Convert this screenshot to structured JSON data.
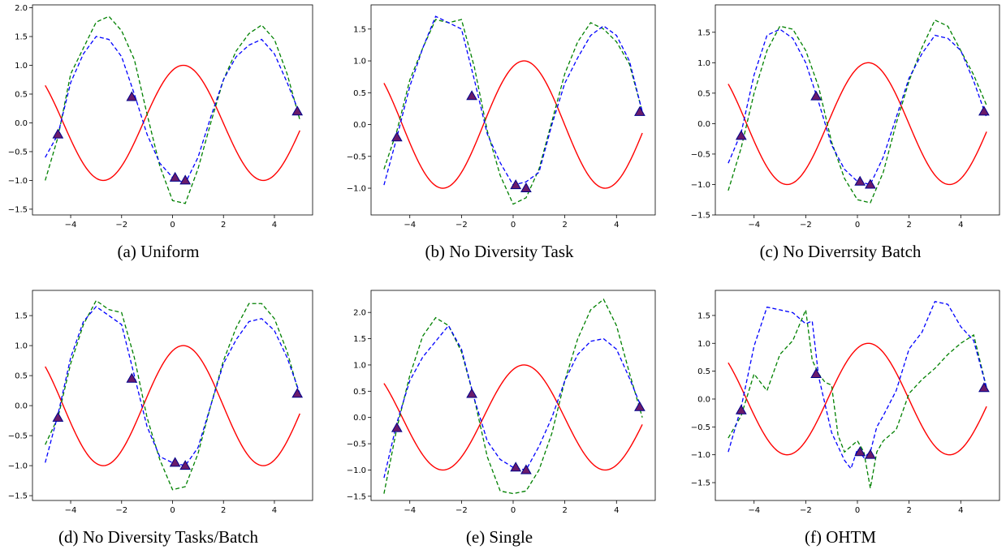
{
  "chart_data": [
    {
      "type": "line",
      "caption": "(a)  Uniform",
      "xlim": [
        -5.5,
        5.5
      ],
      "ylim": [
        -1.6,
        2.05
      ],
      "xticks": [
        -4,
        -2,
        0,
        2,
        4
      ],
      "xtick_labels": [
        "−4",
        "−2",
        "0",
        "2",
        "4"
      ],
      "yticks": [
        -1.5,
        -1.0,
        -0.5,
        0.0,
        0.5,
        1.0,
        1.5,
        2.0
      ],
      "ytick_labels": [
        "−1.5",
        "−1.0",
        "−0.5",
        "0.0",
        "0.5",
        "1.0",
        "1.5",
        "2.0"
      ],
      "sine": {
        "amplitude": 1.0,
        "phase": 1.15
      },
      "series": [
        {
          "color": "#008000",
          "dash": true,
          "x": [
            -5,
            -4.5,
            -4,
            -3.5,
            -3,
            -2.5,
            -2,
            -1.5,
            -1,
            -0.5,
            0,
            0.5,
            1,
            1.5,
            2,
            2.5,
            3,
            3.5,
            4,
            4.5,
            5
          ],
          "y": [
            -1.0,
            -0.25,
            0.85,
            1.3,
            1.75,
            1.85,
            1.6,
            1.1,
            0.15,
            -0.75,
            -1.35,
            -1.4,
            -0.8,
            0.0,
            0.75,
            1.25,
            1.55,
            1.7,
            1.45,
            0.85,
            0.05
          ]
        },
        {
          "color": "#0000ff",
          "dash": true,
          "x": [
            -5,
            -4.5,
            -4,
            -3.5,
            -3,
            -2.5,
            -2,
            -1.5,
            -1,
            -0.5,
            0,
            0.5,
            1,
            1.5,
            2,
            2.5,
            3,
            3.5,
            4,
            4.5,
            5
          ],
          "y": [
            -0.6,
            -0.2,
            0.7,
            1.2,
            1.5,
            1.45,
            1.15,
            0.5,
            -0.2,
            -0.7,
            -0.95,
            -1.05,
            -0.6,
            0.1,
            0.75,
            1.15,
            1.35,
            1.45,
            1.2,
            0.7,
            0.15
          ]
        }
      ],
      "points": {
        "x": [
          -4.5,
          -1.6,
          0.1,
          0.5,
          4.9
        ],
        "y": [
          -0.2,
          0.45,
          -0.95,
          -1.0,
          0.2
        ]
      }
    },
    {
      "type": "line",
      "caption": "(b)  No Diversity Task",
      "xlim": [
        -5.5,
        5.5
      ],
      "ylim": [
        -1.42,
        1.88
      ],
      "xticks": [
        -4,
        -2,
        0,
        2,
        4
      ],
      "xtick_labels": [
        "−4",
        "−2",
        "0",
        "2",
        "4"
      ],
      "yticks": [
        -1.0,
        -0.5,
        0.0,
        0.5,
        1.0,
        1.5
      ],
      "ytick_labels": [
        "−1.0",
        "−0.5",
        "0.0",
        "0.5",
        "1.0",
        "1.5"
      ],
      "sine": {
        "amplitude": 1.0,
        "phase": 1.15
      },
      "series": [
        {
          "color": "#008000",
          "dash": true,
          "x": [
            -5,
            -4.5,
            -4,
            -3.5,
            -3,
            -2.5,
            -2,
            -1.5,
            -1,
            -0.5,
            0,
            0.5,
            1,
            1.5,
            2,
            2.5,
            3,
            3.5,
            4,
            4.5,
            5
          ],
          "y": [
            -0.7,
            -0.1,
            0.7,
            1.2,
            1.65,
            1.6,
            1.65,
            0.9,
            -0.1,
            -0.8,
            -1.25,
            -1.15,
            -0.7,
            0.05,
            0.8,
            1.3,
            1.6,
            1.5,
            1.3,
            0.95,
            0.2
          ]
        },
        {
          "color": "#0000ff",
          "dash": true,
          "x": [
            -5,
            -4.5,
            -4,
            -3.5,
            -3,
            -2.5,
            -2,
            -1.5,
            -1,
            -0.5,
            0,
            0.5,
            1,
            1.5,
            2,
            2.5,
            3,
            3.5,
            4,
            4.5,
            5
          ],
          "y": [
            -0.95,
            -0.2,
            0.6,
            1.2,
            1.7,
            1.6,
            1.5,
            0.7,
            -0.15,
            -0.6,
            -0.95,
            -0.9,
            -0.75,
            0.0,
            0.65,
            1.05,
            1.4,
            1.55,
            1.4,
            1.0,
            0.2
          ]
        }
      ],
      "points": {
        "x": [
          -4.5,
          -1.6,
          0.1,
          0.5,
          4.9
        ],
        "y": [
          -0.2,
          0.45,
          -0.95,
          -1.0,
          0.2
        ]
      }
    },
    {
      "type": "line",
      "caption": "(c)  No Diverrsity Batch",
      "xlim": [
        -5.5,
        5.5
      ],
      "ylim": [
        -1.5,
        1.95
      ],
      "xticks": [
        -4,
        -2,
        0,
        2,
        4
      ],
      "xtick_labels": [
        "−4",
        "−2",
        "0",
        "2",
        "4"
      ],
      "yticks": [
        -1.5,
        -1.0,
        -0.5,
        0.0,
        0.5,
        1.0,
        1.5
      ],
      "ytick_labels": [
        "−1.5",
        "−1.0",
        "−0.5",
        "0.0",
        "0.5",
        "1.0",
        "1.5"
      ],
      "sine": {
        "amplitude": 1.0,
        "phase": 1.15
      },
      "series": [
        {
          "color": "#008000",
          "dash": true,
          "x": [
            -5,
            -4.5,
            -4,
            -3.5,
            -3,
            -2.5,
            -2,
            -1.5,
            -1,
            -0.5,
            0,
            0.5,
            1,
            1.5,
            2,
            2.5,
            3,
            3.5,
            4,
            4.5,
            5
          ],
          "y": [
            -1.1,
            -0.4,
            0.5,
            1.2,
            1.6,
            1.55,
            1.2,
            0.6,
            -0.3,
            -0.9,
            -1.25,
            -1.3,
            -0.8,
            0.0,
            0.7,
            1.25,
            1.7,
            1.6,
            1.2,
            0.8,
            0.3
          ]
        },
        {
          "color": "#0000ff",
          "dash": true,
          "x": [
            -5,
            -4.5,
            -4,
            -3.5,
            -3,
            -2.5,
            -2,
            -1.5,
            -1,
            -0.5,
            0,
            0.5,
            1,
            1.5,
            2,
            2.5,
            3,
            3.5,
            4,
            4.5,
            5
          ],
          "y": [
            -0.65,
            -0.15,
            0.8,
            1.45,
            1.55,
            1.4,
            1.0,
            0.35,
            -0.35,
            -0.75,
            -0.95,
            -1.0,
            -0.55,
            0.1,
            0.75,
            1.15,
            1.45,
            1.4,
            1.2,
            0.7,
            0.1
          ]
        }
      ],
      "points": {
        "x": [
          -4.5,
          -1.6,
          0.1,
          0.5,
          4.9
        ],
        "y": [
          -0.2,
          0.45,
          -0.95,
          -1.0,
          0.2
        ]
      }
    },
    {
      "type": "line",
      "caption": "(d)  No Diversity Tasks/Batch",
      "xlim": [
        -5.5,
        5.5
      ],
      "ylim": [
        -1.58,
        1.92
      ],
      "xticks": [
        -4,
        -2,
        0,
        2,
        4
      ],
      "xtick_labels": [
        "−4",
        "−2",
        "0",
        "2",
        "4"
      ],
      "yticks": [
        -1.5,
        -1.0,
        -0.5,
        0.0,
        0.5,
        1.0,
        1.5
      ],
      "ytick_labels": [
        "−1.5",
        "−1.0",
        "−0.5",
        "0.0",
        "0.5",
        "1.0",
        "1.5"
      ],
      "sine": {
        "amplitude": 1.0,
        "phase": 1.15
      },
      "series": [
        {
          "color": "#008000",
          "dash": true,
          "x": [
            -5,
            -4.5,
            -4,
            -3.5,
            -3,
            -2.5,
            -2,
            -1.5,
            -1,
            -0.5,
            0,
            0.5,
            1,
            1.5,
            2,
            2.5,
            3,
            3.5,
            4,
            4.5,
            5
          ],
          "y": [
            -0.65,
            -0.2,
            0.7,
            1.35,
            1.75,
            1.6,
            1.55,
            0.8,
            -0.2,
            -0.9,
            -1.4,
            -1.35,
            -0.8,
            0.0,
            0.75,
            1.3,
            1.7,
            1.7,
            1.45,
            0.9,
            0.15
          ]
        },
        {
          "color": "#0000ff",
          "dash": true,
          "x": [
            -5,
            -4.5,
            -4,
            -3.5,
            -3,
            -2.5,
            -2,
            -1.5,
            -1,
            -0.5,
            0,
            0.5,
            1,
            1.5,
            2,
            2.5,
            3,
            3.5,
            4,
            4.5,
            5
          ],
          "y": [
            -0.95,
            -0.15,
            0.8,
            1.4,
            1.65,
            1.5,
            1.35,
            0.5,
            -0.35,
            -0.85,
            -0.95,
            -1.0,
            -0.7,
            0.0,
            0.7,
            1.1,
            1.4,
            1.45,
            1.25,
            0.8,
            0.2
          ]
        }
      ],
      "points": {
        "x": [
          -4.5,
          -1.6,
          0.1,
          0.5,
          4.9
        ],
        "y": [
          -0.2,
          0.45,
          -0.95,
          -1.0,
          0.2
        ]
      }
    },
    {
      "type": "line",
      "caption": "(e)  Single",
      "xlim": [
        -5.5,
        5.5
      ],
      "ylim": [
        -1.58,
        2.42
      ],
      "xticks": [
        -4,
        -2,
        0,
        2,
        4
      ],
      "xtick_labels": [
        "−4",
        "−2",
        "0",
        "2",
        "4"
      ],
      "yticks": [
        -1.5,
        -1.0,
        -0.5,
        0.0,
        0.5,
        1.0,
        1.5,
        2.0
      ],
      "ytick_labels": [
        "−1.5",
        "−1.0",
        "−0.5",
        "0.0",
        "0.5",
        "1.0",
        "1.5",
        "2.0"
      ],
      "sine": {
        "amplitude": 1.0,
        "phase": 1.15
      },
      "series": [
        {
          "color": "#008000",
          "dash": true,
          "x": [
            -5,
            -4.5,
            -4,
            -3.5,
            -3,
            -2.5,
            -2,
            -1.5,
            -1,
            -0.5,
            0,
            0.5,
            1,
            1.5,
            2,
            2.5,
            3,
            3.5,
            4,
            4.5,
            5
          ],
          "y": [
            -1.45,
            -0.2,
            0.8,
            1.55,
            1.9,
            1.75,
            1.25,
            0.35,
            -0.75,
            -1.4,
            -1.45,
            -1.4,
            -1.0,
            -0.3,
            0.7,
            1.5,
            2.05,
            2.25,
            1.75,
            0.85,
            0.0
          ]
        },
        {
          "color": "#0000ff",
          "dash": true,
          "x": [
            -5,
            -4.5,
            -4,
            -3.5,
            -3,
            -2.5,
            -2,
            -1.5,
            -1,
            -0.5,
            0,
            0.5,
            1,
            1.5,
            2,
            2.5,
            3,
            3.5,
            4,
            4.5,
            5
          ],
          "y": [
            -1.15,
            -0.1,
            0.7,
            1.15,
            1.45,
            1.75,
            1.3,
            0.35,
            -0.45,
            -0.8,
            -0.95,
            -1.0,
            -0.55,
            0.0,
            0.7,
            1.2,
            1.45,
            1.5,
            1.3,
            0.75,
            0.15
          ]
        }
      ],
      "points": {
        "x": [
          -4.5,
          -1.6,
          0.1,
          0.5,
          4.9
        ],
        "y": [
          -0.2,
          0.45,
          -0.95,
          -1.0,
          0.2
        ]
      }
    },
    {
      "type": "line",
      "caption": "(f)  OHTM",
      "xlim": [
        -5.5,
        5.5
      ],
      "ylim": [
        -1.82,
        1.95
      ],
      "xticks": [
        -4,
        -2,
        0,
        2,
        4
      ],
      "xtick_labels": [
        "−4",
        "−2",
        "0",
        "2",
        "4"
      ],
      "yticks": [
        -1.5,
        -1.0,
        -0.5,
        0.0,
        0.5,
        1.0,
        1.5
      ],
      "ytick_labels": [
        "−1.5",
        "−1.0",
        "−0.5",
        "0.0",
        "0.5",
        "1.0",
        "1.5"
      ],
      "sine": {
        "amplitude": 1.0,
        "phase": 1.15
      },
      "series": [
        {
          "color": "#008000",
          "dash": true,
          "x": [
            -5,
            -4.5,
            -4,
            -3.5,
            -3,
            -2.5,
            -2,
            -1.75,
            -1.5,
            -1.25,
            -1,
            -0.75,
            -0.5,
            -0.25,
            0,
            0.25,
            0.5,
            0.75,
            1,
            1.5,
            2,
            2.5,
            3,
            3.5,
            4,
            4.5,
            5
          ],
          "y": [
            -0.7,
            -0.3,
            0.45,
            0.15,
            0.8,
            1.05,
            1.6,
            0.7,
            0.45,
            0.3,
            0.25,
            -0.65,
            -0.95,
            -0.85,
            -0.75,
            -0.95,
            -1.6,
            -0.95,
            -0.75,
            -0.55,
            0.1,
            0.35,
            0.55,
            0.8,
            1.0,
            1.15,
            0.2
          ]
        },
        {
          "color": "#0000ff",
          "dash": true,
          "x": [
            -5,
            -4.5,
            -4,
            -3.5,
            -3,
            -2.5,
            -2,
            -1.75,
            -1.5,
            -1.25,
            -1,
            -0.75,
            -0.5,
            -0.25,
            0,
            0.25,
            0.5,
            0.75,
            1,
            1.5,
            2,
            2.5,
            3,
            3.5,
            4,
            4.5,
            5
          ],
          "y": [
            -0.95,
            -0.15,
            0.95,
            1.65,
            1.6,
            1.55,
            1.35,
            1.4,
            0.4,
            -0.1,
            -0.6,
            -0.85,
            -1.1,
            -1.25,
            -0.9,
            -1.05,
            -0.95,
            -0.5,
            -0.3,
            0.15,
            0.9,
            1.2,
            1.75,
            1.7,
            1.3,
            1.05,
            0.2
          ]
        }
      ],
      "points": {
        "x": [
          -4.5,
          -1.6,
          0.1,
          0.5,
          4.9
        ],
        "y": [
          -0.2,
          0.45,
          -0.95,
          -1.0,
          0.2
        ]
      }
    }
  ]
}
